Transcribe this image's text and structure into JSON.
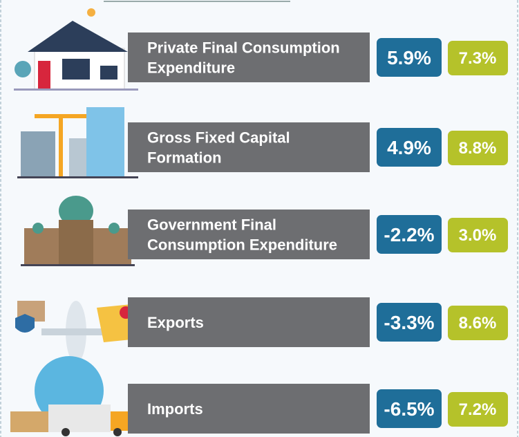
{
  "rows": [
    {
      "label": [
        "Private Final Consumption",
        "Expenditure"
      ],
      "values": [
        "5.9%",
        "7.3%"
      ]
    },
    {
      "label": [
        "Gross Fixed Capital",
        "Formation"
      ],
      "values": [
        "4.9%",
        "8.8%"
      ]
    },
    {
      "label": [
        "Government Final",
        "Consumption Expenditure"
      ],
      "values": [
        "-2.2%",
        "3.0%"
      ]
    },
    {
      "label": [
        "Exports"
      ],
      "values": [
        "-3.3%",
        "8.6%"
      ]
    },
    {
      "label": [
        "Imports"
      ],
      "values": [
        "-6.5%",
        "7.2%"
      ]
    }
  ]
}
